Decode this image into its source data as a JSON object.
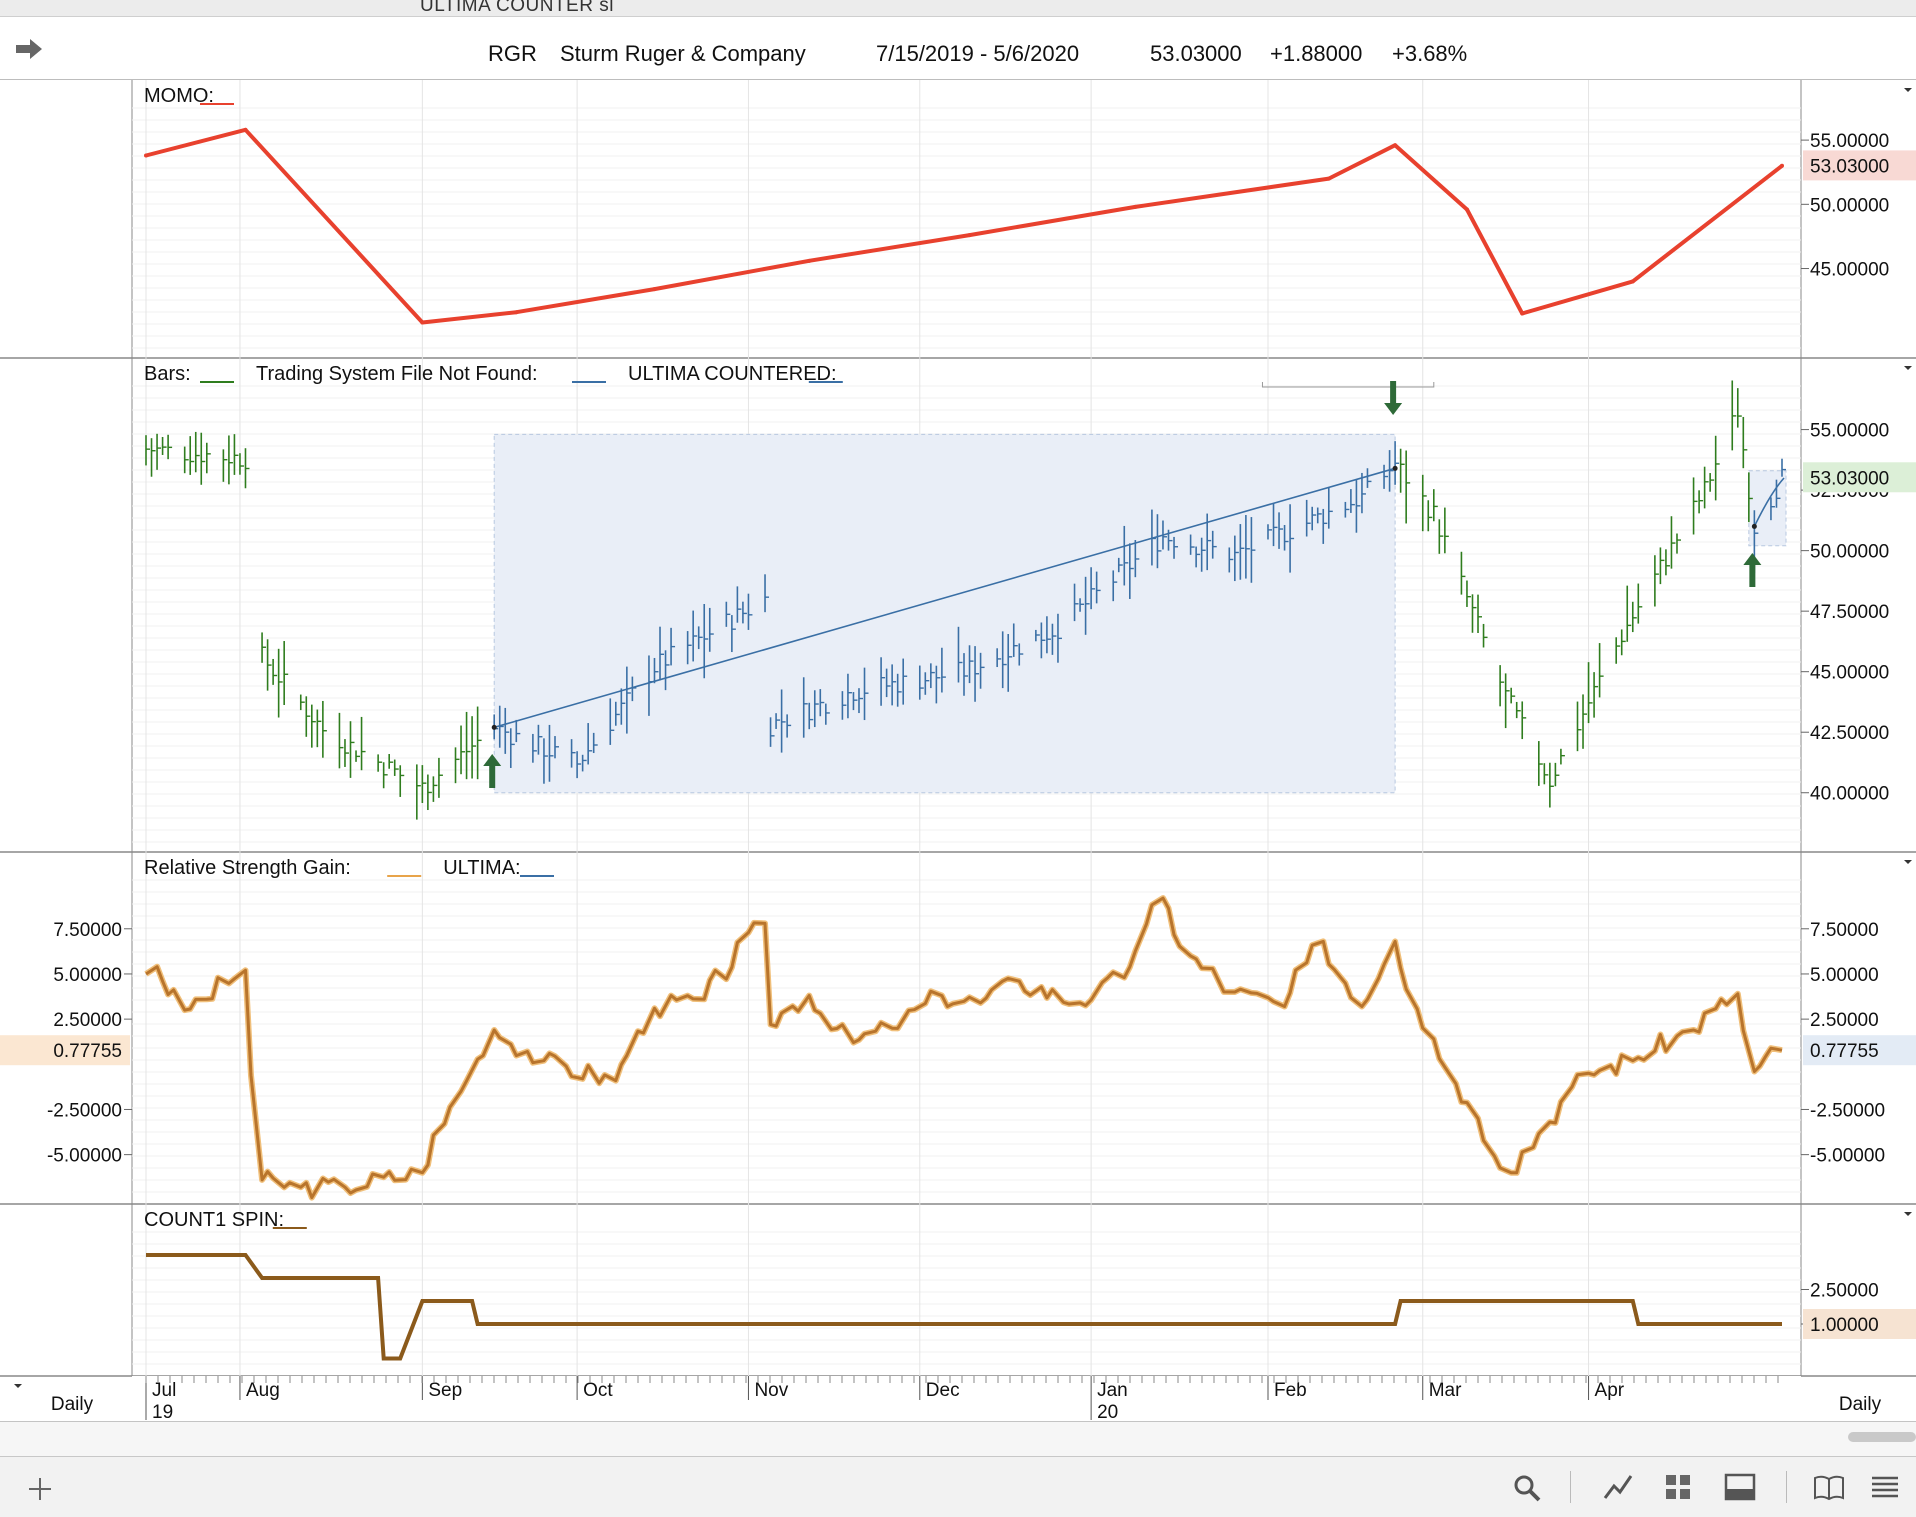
{
  "window_title": "ULTIMA COUNTER sl",
  "header": {
    "symbol": "RGR",
    "company": "Sturm Ruger & Company",
    "date_range": "7/15/2019 - 5/6/2020",
    "last": "53.03000",
    "change": "+1.88000",
    "change_pct": "+3.68%"
  },
  "footer": {
    "period_left": "Daily",
    "period_right": "Daily"
  },
  "colors": {
    "momo": "#e8412e",
    "bars_green": "#2f7d1e",
    "bars_blue": "#3a6fa5",
    "rsg": "#b8742c",
    "count": "#8b5a1b",
    "arrow": "#2e6a38"
  },
  "chart_data": [
    {
      "panel": "momo",
      "type": "line",
      "legend": [
        {
          "name": "MOMO:",
          "color": "#e8412e"
        }
      ],
      "last_value": "53.03000",
      "y_ticks": [
        "55.00000",
        "50.00000",
        "45.00000"
      ],
      "x": [
        "2019-07-15",
        "2019-08-02",
        "2019-09-03",
        "2019-09-20",
        "2019-10-15",
        "2019-11-12",
        "2019-12-11",
        "2020-01-10",
        "2020-02-14",
        "2020-02-26",
        "2020-03-10",
        "2020-03-20",
        "2020-04-09",
        "2020-05-06"
      ],
      "values": [
        53.8,
        55.8,
        40.8,
        41.6,
        43.4,
        45.6,
        47.6,
        49.8,
        52.0,
        54.6,
        49.6,
        41.5,
        44.0,
        53.0
      ]
    },
    {
      "panel": "price",
      "type": "bar",
      "legend": [
        {
          "name": "Bars:",
          "color": "#2f7d1e"
        },
        {
          "name": "Trading System File Not Found:",
          "color": "#3a6fa5"
        },
        {
          "name": "ULTIMA COUNTERED:",
          "color": "#3a6fa5"
        }
      ],
      "last_value": "53.03000",
      "y_ticks": [
        "55.00000",
        "52.50000",
        "50.00000",
        "47.50000",
        "45.00000",
        "42.50000",
        "40.00000"
      ],
      "x_dates": [
        "2019-07-15",
        "2019-08-02",
        "2019-08-05",
        "2019-08-16",
        "2019-09-03",
        "2019-09-16",
        "2019-10-01",
        "2019-10-15",
        "2019-11-04",
        "2019-11-05",
        "2019-11-20",
        "2019-12-10",
        "2019-12-27",
        "2020-01-15",
        "2020-01-28",
        "2020-02-20",
        "2020-02-26",
        "2020-03-04",
        "2020-03-17",
        "2020-03-25",
        "2020-04-07",
        "2020-04-22",
        "2020-04-28",
        "2020-05-01",
        "2020-05-06"
      ],
      "closes": [
        54.2,
        53.8,
        45.6,
        42.6,
        40.2,
        42.7,
        41.2,
        45.2,
        48.0,
        42.8,
        44.2,
        45.0,
        46.8,
        50.6,
        49.8,
        52.2,
        53.6,
        51.5,
        44.0,
        40.5,
        46.5,
        52.5,
        55.8,
        51.0,
        53.0
      ],
      "trend_line": {
        "from": {
          "date": "2019-09-16",
          "value": 42.7
        },
        "to": {
          "date": "2020-02-26",
          "value": 53.4
        }
      },
      "shaded_region": {
        "from": "2019-09-16",
        "to": "2020-02-26",
        "low": 40.0,
        "high": 54.8
      },
      "signals": [
        {
          "type": "buy-arrow",
          "date": "2019-09-16"
        },
        {
          "type": "sell-arrow",
          "date": "2020-02-26"
        },
        {
          "type": "buy-arrow",
          "date": "2020-05-01"
        }
      ]
    },
    {
      "panel": "rsg",
      "type": "line",
      "legend": [
        {
          "name": "Relative Strength Gain:",
          "color": "#e8a44a"
        },
        {
          "name": "ULTIMA:",
          "color": "#3a6fa5"
        }
      ],
      "last_value": "0.77755",
      "y_ticks": [
        "7.50000",
        "5.00000",
        "2.50000",
        "-2.50000",
        "-5.00000"
      ],
      "x": [
        "2019-07-15",
        "2019-07-17",
        "2019-07-22",
        "2019-07-26",
        "2019-08-02",
        "2019-08-05",
        "2019-08-12",
        "2019-08-20",
        "2019-09-03",
        "2019-09-10",
        "2019-09-16",
        "2019-09-25",
        "2019-10-08",
        "2019-10-15",
        "2019-10-24",
        "2019-11-04",
        "2019-11-05",
        "2019-11-12",
        "2019-11-20",
        "2019-11-27",
        "2019-12-06",
        "2019-12-13",
        "2019-12-20",
        "2019-12-31",
        "2020-01-08",
        "2020-01-15",
        "2020-01-20",
        "2020-01-28",
        "2020-02-06",
        "2020-02-13",
        "2020-02-20",
        "2020-02-26",
        "2020-03-04",
        "2020-03-12",
        "2020-03-18",
        "2020-03-25",
        "2020-04-01",
        "2020-04-09",
        "2020-04-20",
        "2020-04-28",
        "2020-05-01",
        "2020-05-06"
      ],
      "values": [
        5.0,
        5.4,
        3.0,
        3.6,
        5.2,
        -6.4,
        -6.8,
        -6.8,
        -6.0,
        -1.5,
        1.9,
        0.2,
        -0.9,
        3.1,
        3.6,
        7.8,
        2.2,
        3.8,
        1.2,
        2.0,
        3.8,
        3.4,
        4.6,
        3.4,
        4.8,
        9.2,
        6.0,
        4.0,
        3.2,
        6.8,
        3.2,
        6.8,
        1.4,
        -3.0,
        -6.0,
        -3.2,
        -0.5,
        0.2,
        1.9,
        3.9,
        -0.4,
        0.78
      ]
    },
    {
      "panel": "count1",
      "type": "line",
      "legend": [
        {
          "name": "COUNT1 SPIN:",
          "color": "#8b5a1b"
        }
      ],
      "last_value": "1.00000",
      "y_ticks": [
        "2.50000",
        "1.00000"
      ],
      "x": [
        "2019-07-15",
        "2019-08-02",
        "2019-08-05",
        "2019-08-26",
        "2019-08-27",
        "2019-08-30",
        "2019-09-03",
        "2019-09-12",
        "2019-09-13",
        "2020-02-26",
        "2020-02-27",
        "2020-04-09",
        "2020-04-10",
        "2020-05-06"
      ],
      "values": [
        4.0,
        4.0,
        3.0,
        3.0,
        -0.5,
        -0.5,
        2.0,
        2.0,
        1.0,
        1.0,
        2.0,
        2.0,
        1.0,
        1.0
      ],
      "step": true
    }
  ],
  "x_axis": {
    "months": [
      {
        "label": "Jul",
        "date": "2019-07-15",
        "year": "19"
      },
      {
        "label": "Aug",
        "date": "2019-08-01"
      },
      {
        "label": "Sep",
        "date": "2019-09-03"
      },
      {
        "label": "Oct",
        "date": "2019-10-01"
      },
      {
        "label": "Nov",
        "date": "2019-11-01"
      },
      {
        "label": "Dec",
        "date": "2019-12-02"
      },
      {
        "label": "Jan",
        "date": "2020-01-02",
        "year": "20"
      },
      {
        "label": "Feb",
        "date": "2020-02-03"
      },
      {
        "label": "Mar",
        "date": "2020-03-02"
      },
      {
        "label": "Apr",
        "date": "2020-04-01"
      }
    ]
  }
}
